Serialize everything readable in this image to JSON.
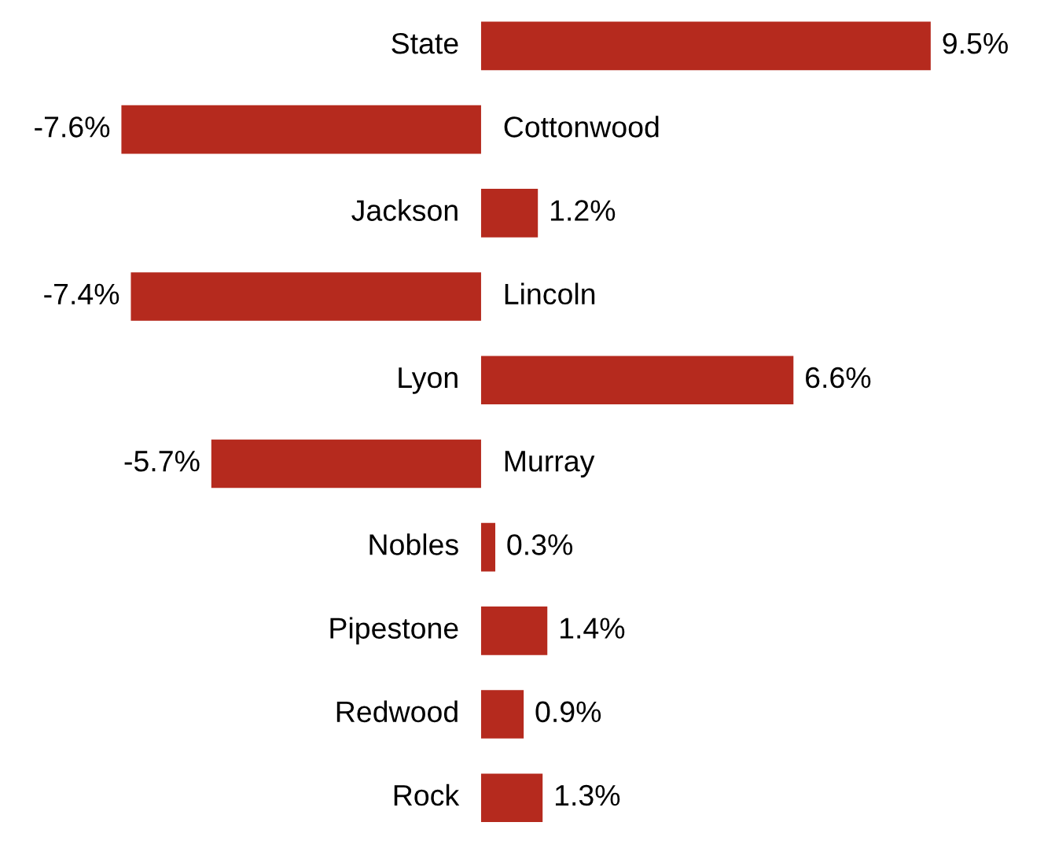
{
  "chart_data": {
    "type": "bar",
    "orientation": "horizontal",
    "categories": [
      "State",
      "Cottonwood",
      "Jackson",
      "Lincoln",
      "Lyon",
      "Murray",
      "Nobles",
      "Pipestone",
      "Redwood",
      "Rock"
    ],
    "values": [
      9.5,
      -7.6,
      1.2,
      -7.4,
      6.6,
      -5.7,
      0.3,
      1.4,
      0.9,
      1.3
    ],
    "value_labels": [
      "9.5%",
      "-7.6%",
      "1.2%",
      "-7.4%",
      "6.6%",
      "-5.7%",
      "0.3%",
      "1.4%",
      "0.9%",
      "1.3%"
    ],
    "color": "#b52a1e"
  }
}
